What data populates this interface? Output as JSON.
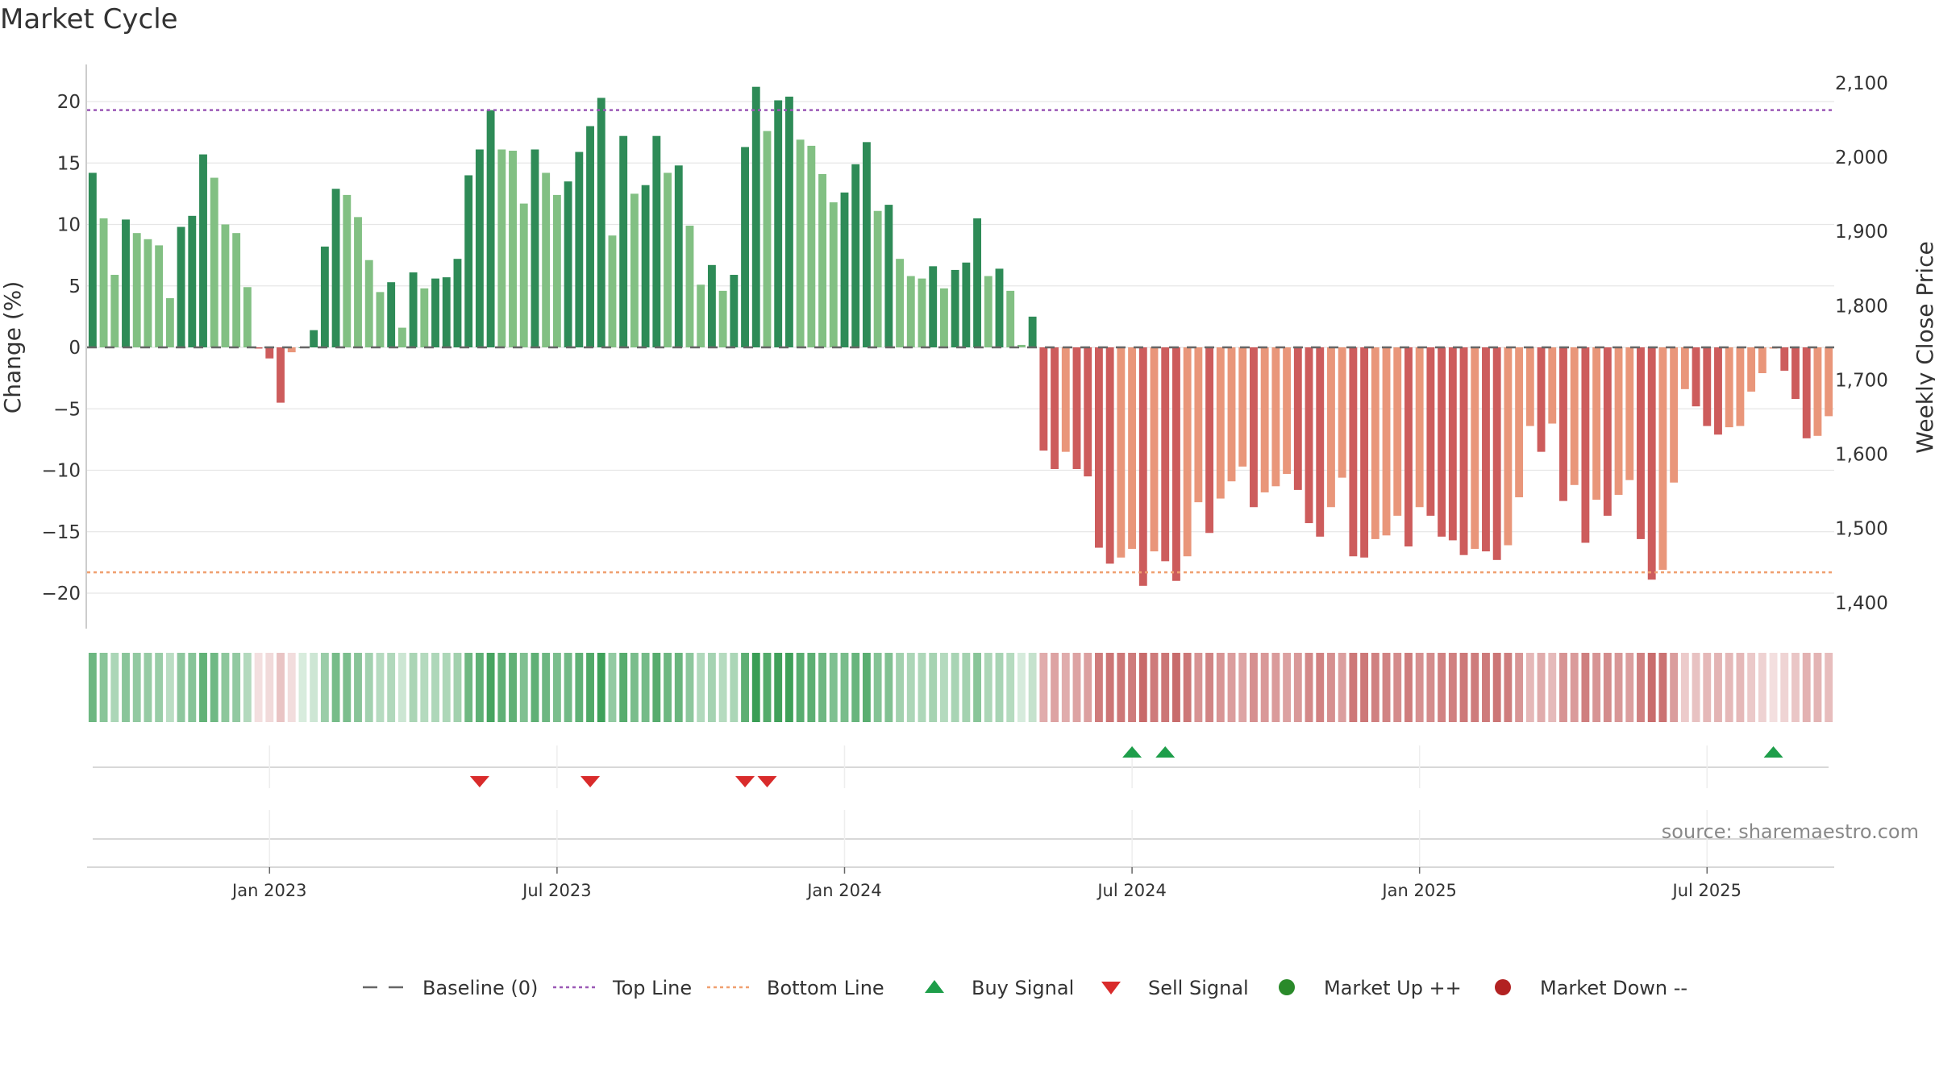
{
  "chart_data": {
    "type": "bar",
    "title": "Market Cycle",
    "ylabel_left": "Change (%)",
    "ylabel_right": "Weekly Close Price",
    "ylim_left": [
      -23,
      23
    ],
    "ylim_right": [
      1365,
      2125
    ],
    "yticks_left": [
      "20",
      "15",
      "10",
      "5",
      "0",
      "−5",
      "−10",
      "−15",
      "−20"
    ],
    "yticks_left_values": [
      20,
      15,
      10,
      5,
      0,
      -5,
      -10,
      -15,
      -20
    ],
    "yticks_right": [
      "2,100",
      "2,000",
      "1,900",
      "1,800",
      "1,700",
      "1,600",
      "1,500",
      "1,400"
    ],
    "yticks_right_values": [
      2100,
      2000,
      1900,
      1800,
      1700,
      1600,
      1500,
      1400
    ],
    "x_ticks": [
      "Jan 2023",
      "Jul 2023",
      "Jan 2024",
      "Jul 2024",
      "Jan 2025",
      "Jul 2025"
    ],
    "x_tick_weeks": [
      16.5,
      42.5,
      68.5,
      94.5,
      120.5,
      146.5
    ],
    "top_line": 19.3,
    "bottom_line": -18.3,
    "baseline": 0,
    "values": [
      14.2,
      10.5,
      5.9,
      10.4,
      9.3,
      8.8,
      8.3,
      4.0,
      9.8,
      10.7,
      15.7,
      13.8,
      10.0,
      9.3,
      4.9,
      -0.1,
      -0.9,
      -4.5,
      -0.4,
      0.0,
      1.4,
      8.2,
      12.9,
      12.4,
      10.6,
      7.1,
      4.5,
      5.3,
      1.6,
      6.1,
      4.8,
      5.6,
      5.7,
      7.2,
      14.0,
      16.1,
      19.3,
      16.1,
      16.0,
      11.7,
      16.1,
      14.2,
      12.4,
      13.5,
      15.9,
      18.0,
      20.3,
      9.1,
      17.2,
      12.5,
      13.2,
      17.2,
      14.2,
      14.8,
      9.9,
      5.1,
      6.7,
      4.6,
      5.9,
      16.3,
      21.2,
      17.6,
      20.1,
      20.4,
      16.9,
      16.4,
      14.1,
      11.8,
      12.6,
      14.9,
      16.7,
      11.1,
      11.6,
      7.2,
      5.8,
      5.6,
      6.6,
      4.8,
      6.3,
      6.9,
      10.5,
      5.8,
      6.4,
      4.6,
      0.2,
      2.5,
      -8.4,
      -9.9,
      -8.5,
      -9.9,
      -10.5,
      -16.3,
      -17.6,
      -17.1,
      -16.4,
      -19.4,
      -16.6,
      -17.4,
      -19.0,
      -17.0,
      -12.6,
      -15.1,
      -12.3,
      -10.9,
      -9.7,
      -13.0,
      -11.8,
      -11.3,
      -10.3,
      -11.6,
      -14.3,
      -15.4,
      -13.0,
      -10.6,
      -17.0,
      -17.1,
      -15.6,
      -15.3,
      -13.7,
      -16.2,
      -13.0,
      -13.7,
      -15.4,
      -15.7,
      -16.9,
      -16.4,
      -16.6,
      -17.3,
      -16.1,
      -12.2,
      -6.4,
      -8.5,
      -6.2,
      -12.5,
      -11.2,
      -15.9,
      -12.4,
      -13.7,
      -12.0,
      -10.8,
      -15.6,
      -18.9,
      -18.1,
      -11.0,
      -3.4,
      -4.8,
      -6.4,
      -7.1,
      -6.5,
      -6.4,
      -3.6,
      -2.1,
      -0.1,
      -1.9,
      -4.2,
      -7.4,
      -7.2,
      -5.6
    ],
    "price_line": {
      "visible": false
    },
    "signals": {
      "buy_weeks": [
        94.5,
        97.5,
        152.5
      ],
      "sell_weeks": [
        35.5,
        45.5,
        59.5,
        61.5
      ]
    },
    "legend": [
      {
        "label": "Baseline (0)",
        "marker": "dash",
        "color": "#666666"
      },
      {
        "label": "Top Line",
        "marker": "dotted",
        "color": "#9b59b6"
      },
      {
        "label": "Bottom Line",
        "marker": "dotted",
        "color": "#f0a070"
      },
      {
        "label": "Buy Signal",
        "marker": "triangle-up",
        "color": "#1e9e4a"
      },
      {
        "label": "Sell Signal",
        "marker": "triangle-down",
        "color": "#d92b2b"
      },
      {
        "label": "Market Up ++",
        "marker": "circle",
        "color": "#2a8a2a"
      },
      {
        "label": "Market Down --",
        "marker": "circle",
        "color": "#b22222"
      }
    ],
    "source": "source: sharemaestro.com",
    "colors": {
      "strong_up": "#2e8b57",
      "weak_up": "#82c083",
      "strong_down": "#cd5c5c",
      "weak_down": "#e9967a",
      "top_line": "#9b59b6",
      "bottom_line": "#f0a070",
      "buy": "#1e9e4a",
      "sell": "#d92b2b"
    }
  }
}
